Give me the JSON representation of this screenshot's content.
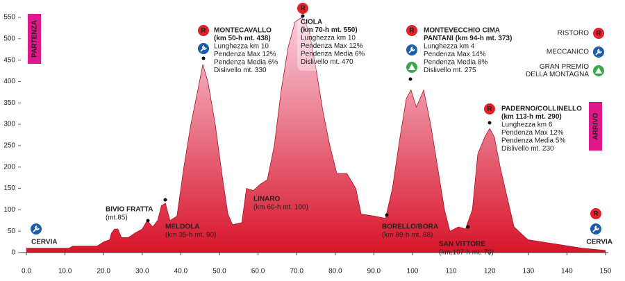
{
  "chart_data": {
    "type": "area",
    "color_top": "#f9cfe0",
    "color_bottom": "#d8142a",
    "start_label": "PARTENZA",
    "finish_label": "ARRIVO",
    "icon_letter": "R",
    "x": [
      0,
      11,
      12,
      18.3,
      20,
      21.6,
      22,
      22.8,
      23.7,
      24.6,
      26.4,
      28,
      30,
      31.3,
      32.7,
      34,
      35,
      36,
      37.2,
      39,
      40.8,
      42.6,
      44.4,
      45.7,
      47,
      48.9,
      50.7,
      52.2,
      53.4,
      55.8,
      57,
      58.8,
      60.6,
      62.4,
      64.2,
      66,
      67.8,
      69.6,
      71.4,
      73.2,
      75,
      76.8,
      78.6,
      80.4,
      83,
      85.3,
      86.7,
      90.3,
      93,
      94.8,
      96.6,
      98.4,
      99.6,
      101,
      102.9,
      104.7,
      106.5,
      108.3,
      109.7,
      111.9,
      113.7,
      115.5,
      116.9,
      118.7,
      120,
      121.2,
      122.7,
      124.5,
      126.3,
      129.9,
      137,
      144,
      150
    ],
    "values": [
      10,
      10,
      15,
      15,
      25,
      30,
      45,
      55,
      55,
      35,
      35,
      45,
      55,
      75,
      60,
      75,
      110,
      115,
      75,
      85,
      200,
      300,
      380,
      440,
      400,
      300,
      180,
      90,
      65,
      70,
      150,
      145,
      160,
      170,
      250,
      380,
      480,
      540,
      550,
      520,
      430,
      330,
      250,
      185,
      185,
      150,
      90,
      85,
      80,
      150,
      260,
      360,
      380,
      340,
      380,
      300,
      200,
      100,
      50,
      60,
      55,
      100,
      230,
      270,
      290,
      270,
      200,
      130,
      60,
      30,
      20,
      10,
      5
    ],
    "xlim": [
      0,
      150
    ],
    "ylim": [
      0,
      550
    ],
    "yticks": [
      0,
      50,
      100,
      150,
      200,
      250,
      300,
      350,
      400,
      450,
      500,
      550
    ],
    "xticks": [
      {
        "value": 0,
        "label": "0.0"
      },
      {
        "value": 10,
        "label": "10.0"
      },
      {
        "value": 20,
        "label": "20.0"
      },
      {
        "value": 30,
        "label": "30.0"
      },
      {
        "value": 40,
        "label": "40.0"
      },
      {
        "value": 50,
        "label": "50.0"
      },
      {
        "value": 60,
        "label": "60.0"
      },
      {
        "value": 70,
        "label": "70.0"
      },
      {
        "value": 80,
        "label": "80.0"
      },
      {
        "value": 90,
        "label": "90.0"
      },
      {
        "value": 100,
        "label": "100"
      },
      {
        "value": 110,
        "label": "110"
      },
      {
        "value": 120,
        "label": "120"
      },
      {
        "value": 130,
        "label": "130"
      },
      {
        "value": 140,
        "label": "140"
      },
      150
    ],
    "annotations": [
      {
        "title": [
          "MONTECAVALLO",
          "(km 50-h mt. 438)"
        ],
        "lines": [
          "Lunghezza km 10",
          "Pendenza Max 12%",
          "Pendenza Media 6%",
          "Dislivello mt. 330"
        ]
      },
      {
        "title": [
          "CIOLA",
          "(km 70-h mt. 550)"
        ],
        "lines": [
          "Lunghezza km 10",
          "Pendenza Max 12%",
          "Pendenza Media 6%",
          "Dislivello mt. 470"
        ]
      },
      {
        "title": [
          "MONTEVECCHIO CIMA",
          "PANTANI (km 94-h mt. 373)"
        ],
        "lines": [
          "Lunghezza km 4",
          "Pendenza Max 14%",
          "Pendenza Media 8%",
          "Dislivello mt. 275"
        ]
      },
      {
        "title": [
          "PADERNO/COLLINELLO",
          "(km 113-h mt. 290)"
        ],
        "lines": [
          "Lunghezza km 6",
          "Pendenza Max 12%",
          "Pendenza Media 5%",
          "Dislivello mt. 230"
        ]
      }
    ],
    "places": [
      {
        "lines": [
          "CERVIA"
        ]
      },
      {
        "lines": [
          "BIVIO FRATTA",
          "(mt.85)"
        ]
      },
      {
        "lines": [
          "MELDOLA",
          "(km 35-h mt. 90)"
        ]
      },
      {
        "lines": [
          "LINARO",
          "(km 60-h mt. 100)"
        ]
      },
      {
        "lines": [
          "BORELLO/BORA",
          "(km 89-h mt. 88)"
        ]
      },
      {
        "lines": [
          "SAN VITTORE",
          "(km 107-h mt. 70)"
        ]
      },
      {
        "lines": [
          "CERVIA"
        ]
      }
    ],
    "legend": [
      {
        "lines": [
          "RISTORO"
        ]
      },
      {
        "lines": [
          "MECCANICO"
        ]
      },
      {
        "lines": [
          "GRAN PREMIO",
          "DELLA MONTAGNA"
        ]
      }
    ]
  }
}
